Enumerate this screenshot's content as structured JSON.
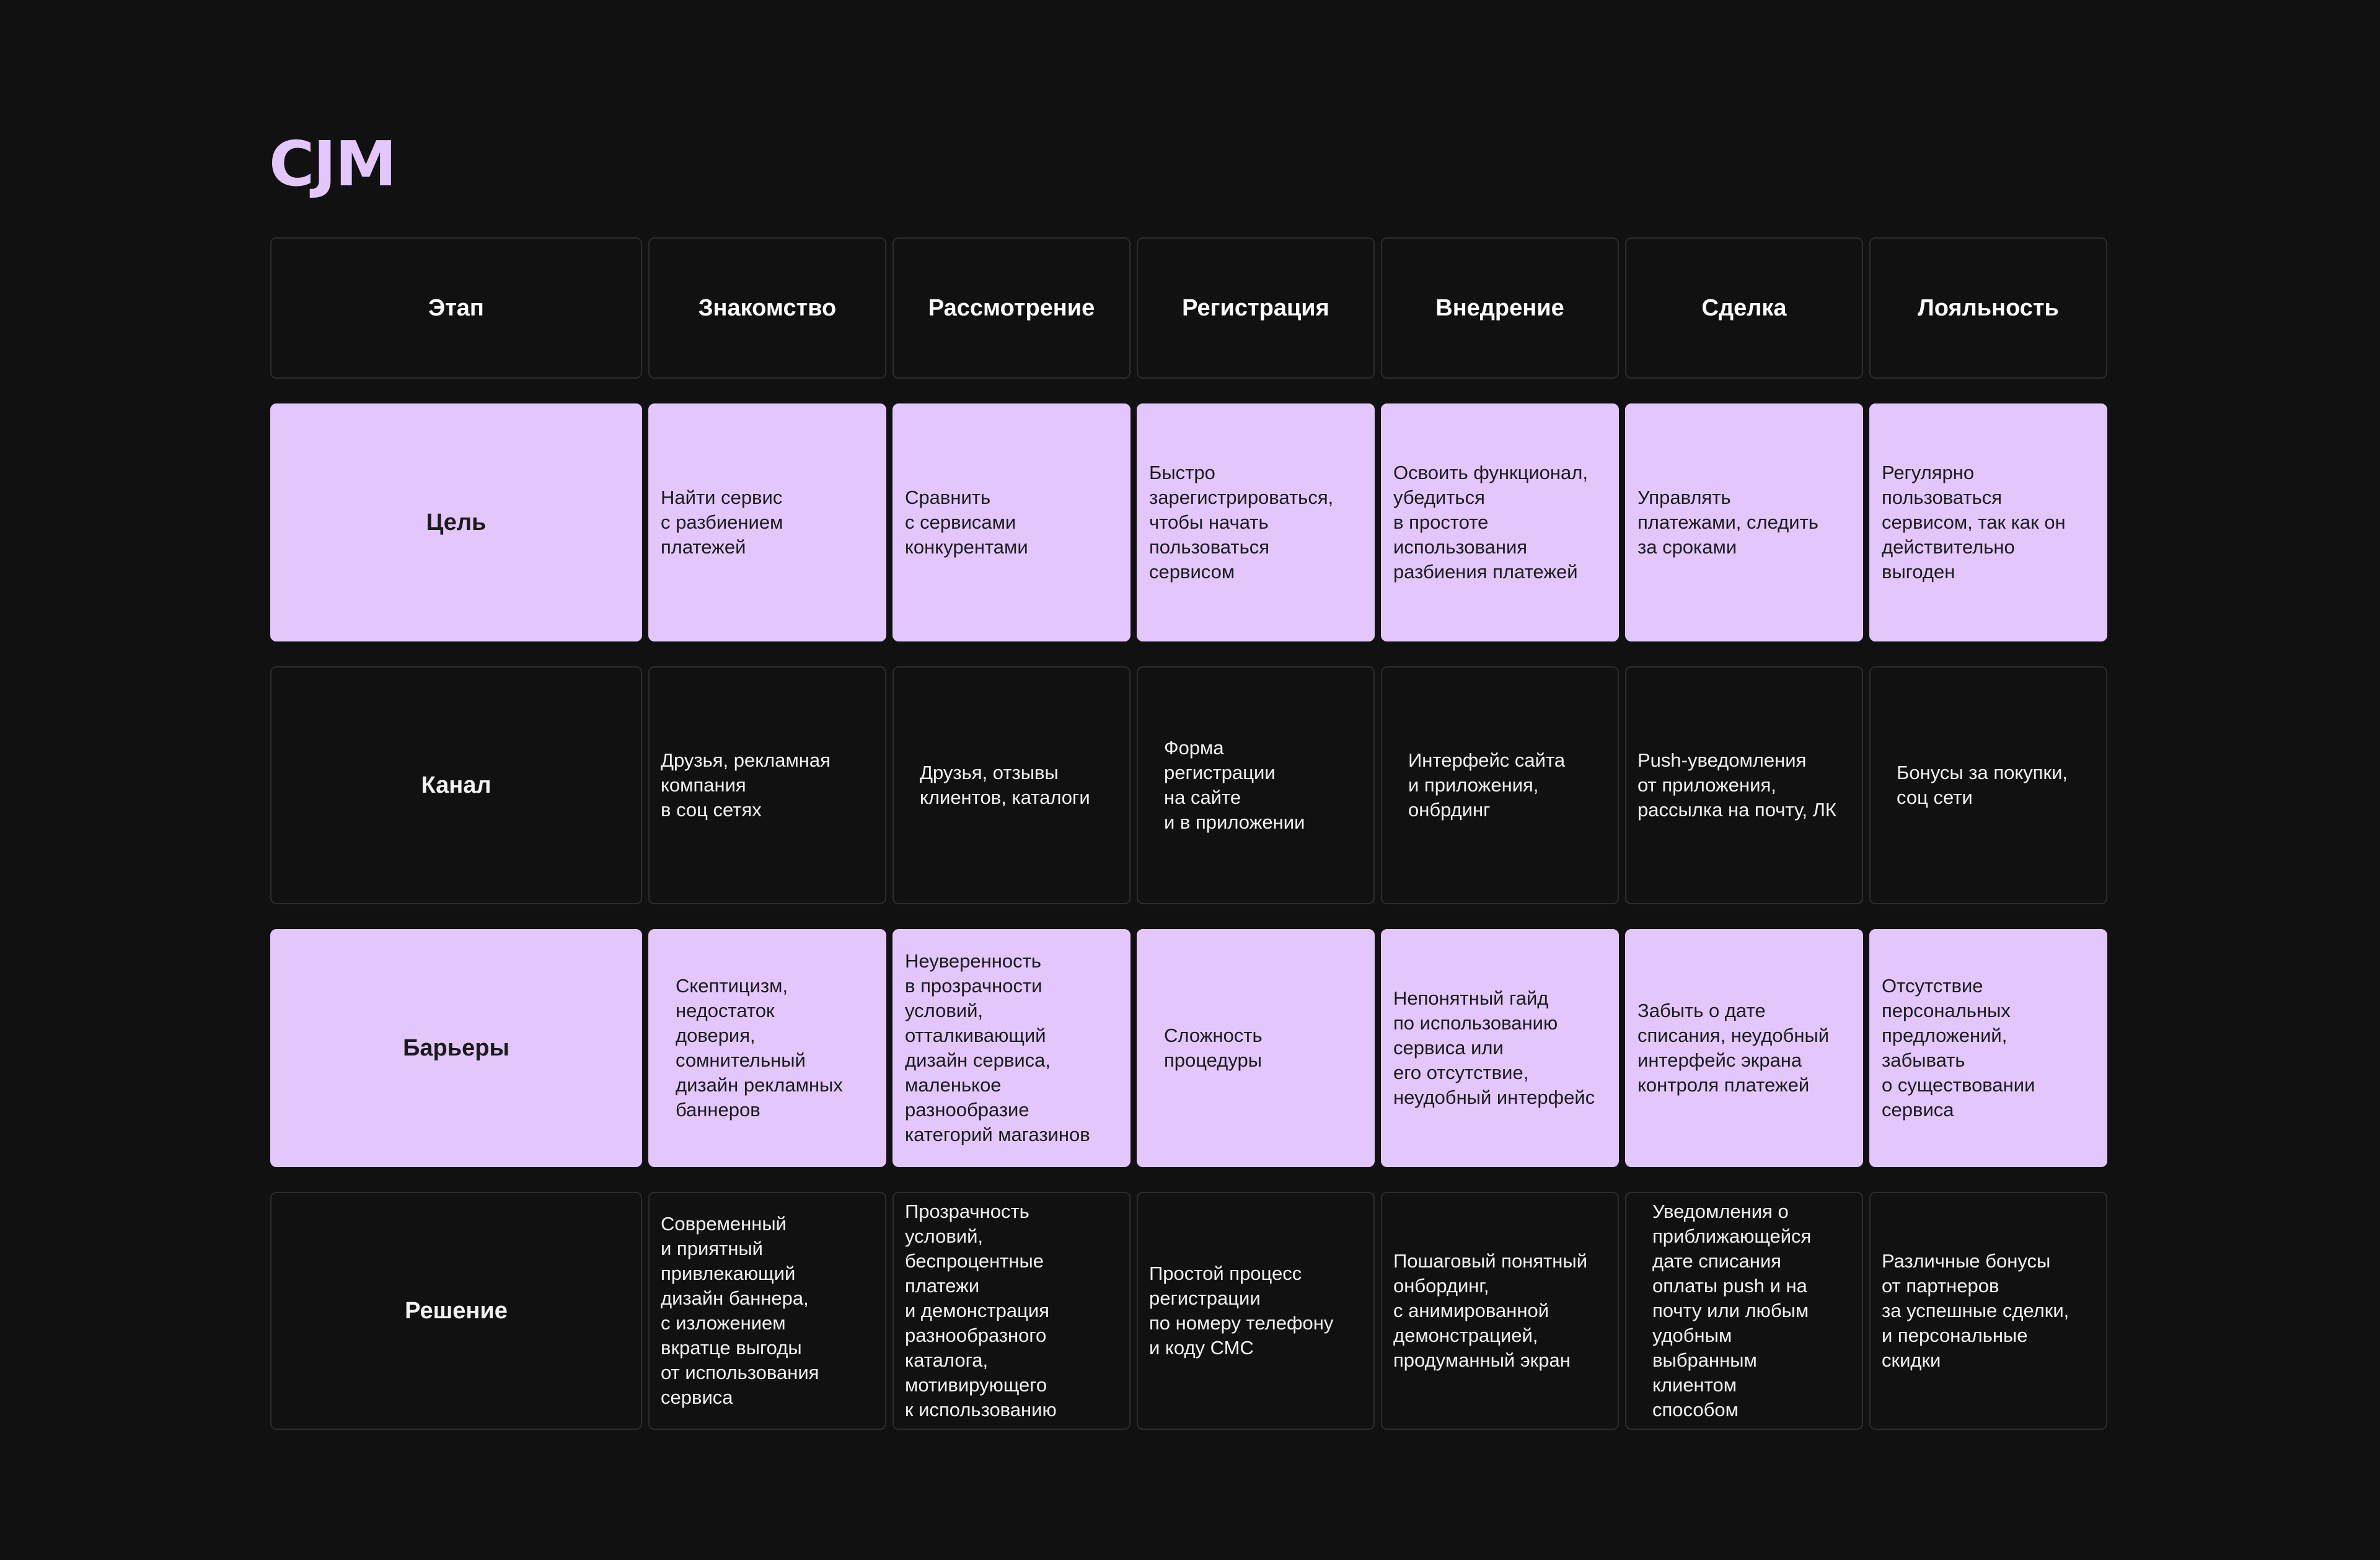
{
  "title": "CJM",
  "header": {
    "label": "Этап",
    "stages": [
      "Знакомство",
      "Рассмотрение",
      "Регистрация",
      "Внедрение",
      "Сделка",
      "Лояльность"
    ]
  },
  "rows": [
    {
      "label": "Цель",
      "style": "light",
      "cells": [
        "Найти сервис\nс разбиением\nплатежей",
        "Сравнить\nс сервисами\nконкурентами",
        "Быстро\nзарегистрироваться,\nчтобы начать\nпользоваться\nсервисом",
        "Освоить функционал,\nубедиться\nв простоте\nиспользования\nразбиения платежей",
        "Управлять\nплатежами, следить\nза сроками",
        "Регулярно\nпользоваться\nсервисом, так как он\nдействительно\nвыгоден"
      ]
    },
    {
      "label": "Канал",
      "style": "dark",
      "cells": [
        "Друзья, рекламная\nкомпания\nв соц сетях",
        "Друзья, отзывы\nклиентов, каталоги",
        "Форма\nрегистрации\nна сайте\nи в приложении",
        "Интерфейс сайта\nи приложения,\nонбрдинг",
        "Push-уведомления\nот приложения,\nрассылка на почту, ЛК",
        "Бонусы за покупки,\nсоц сети"
      ]
    },
    {
      "label": "Барьеры",
      "style": "light",
      "cells": [
        "Скептицизм,\nнедостаток\nдоверия,\nсомнительный\nдизайн рекламных\nбаннеров",
        "Неуверенность\nв прозрачности\nусловий,\nотталкивающий\nдизайн сервиса,\nмаленькое\nразнообразие\nкатегорий магазинов",
        "Сложность\nпроцедуры",
        "Непонятный гайд\nпо использованию\nсервиса или\nего отсутствие,\nнеудобный интерфейс",
        "Забыть о дате\nсписания, неудобный\nинтерфейс экрана\nконтроля платежей",
        "Отсутствие\nперсональных\nпредложений,\nзабывать\nо существовании\nсервиса"
      ]
    },
    {
      "label": "Решение",
      "style": "dark",
      "cells": [
        "Современный\nи приятный\nпривлекающий\nдизайн баннера,\nс изложением\nвкратце выгоды\nот использования\nсервиса",
        "Прозрачность\nусловий,\nбеспроцентные\nплатежи\nи демонстрация\nразнообразного\nкаталога,\nмотивирующего\nк использованию",
        "Простой процесс\nрегистрации\nпо номеру телефону\nи коду СМС",
        "Пошаговый понятный\nонбординг,\nс анимированной\nдемонстрацией,\nпродуманный экран",
        "Уведомления о\nприближающейся\nдате списания\nоплаты push и на\nпочту или любым\nудобным\nвыбранным\nклиентом\nспособом",
        "Различные бонусы\nот партнеров\nза успешные сделки,\nи персональные\nскидки"
      ]
    }
  ],
  "colors": {
    "background": "#111111",
    "accent": "#e3c6fc",
    "cell_border": "#2c2c2c",
    "text_light": "#f2f2f2",
    "text_dark": "#1b1b1b"
  }
}
